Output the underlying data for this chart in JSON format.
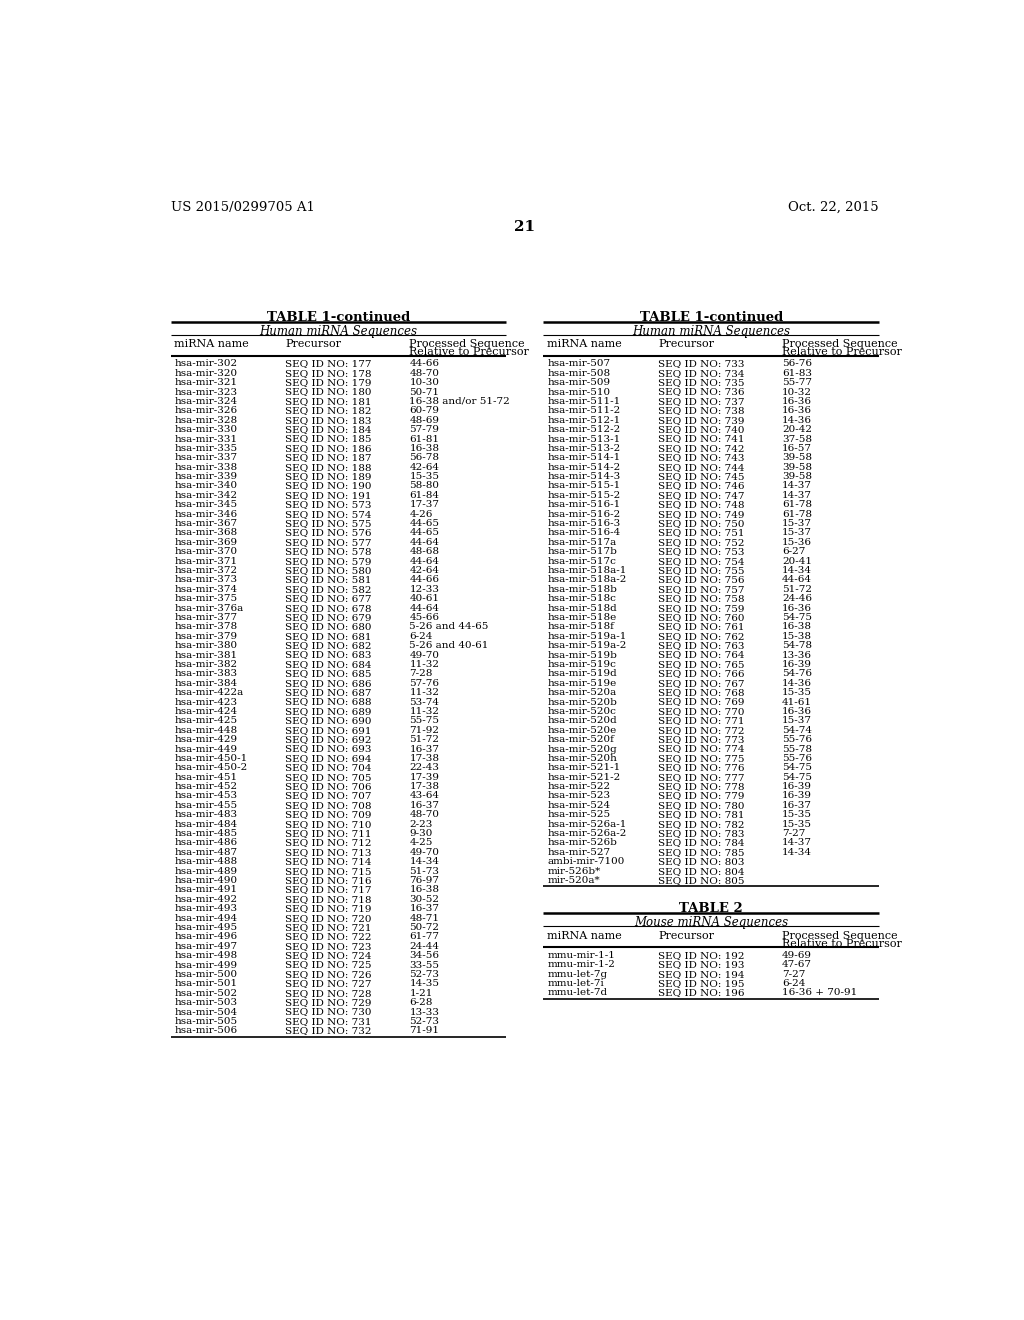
{
  "page_num": "21",
  "patent_left": "US 2015/0299705 A1",
  "patent_right": "Oct. 22, 2015",
  "table1_title": "TABLE 1-continued",
  "table1_subtitle": "Human miRNA Sequences",
  "table2_title": "TABLE 2",
  "table2_subtitle": "Mouse miRNA Sequences",
  "col_headers_line1": [
    "miRNA name",
    "Precursor",
    "Processed Sequence"
  ],
  "col_headers_line2": [
    "",
    "",
    "Relative to Precursor"
  ],
  "left_table_data": [
    [
      "hsa-mir-302",
      "SEQ ID NO: 177",
      "44-66"
    ],
    [
      "hsa-mir-320",
      "SEQ ID NO: 178",
      "48-70"
    ],
    [
      "hsa-mir-321",
      "SEQ ID NO: 179",
      "10-30"
    ],
    [
      "hsa-mir-323",
      "SEQ ID NO: 180",
      "50-71"
    ],
    [
      "hsa-mir-324",
      "SEQ ID NO: 181",
      "16-38 and/or 51-72"
    ],
    [
      "hsa-mir-326",
      "SEQ ID NO: 182",
      "60-79"
    ],
    [
      "hsa-mir-328",
      "SEQ ID NO: 183",
      "48-69"
    ],
    [
      "hsa-mir-330",
      "SEQ ID NO: 184",
      "57-79"
    ],
    [
      "hsa-mir-331",
      "SEQ ID NO: 185",
      "61-81"
    ],
    [
      "hsa-mir-335",
      "SEQ ID NO: 186",
      "16-38"
    ],
    [
      "hsa-mir-337",
      "SEQ ID NO: 187",
      "56-78"
    ],
    [
      "hsa-mir-338",
      "SEQ ID NO: 188",
      "42-64"
    ],
    [
      "hsa-mir-339",
      "SEQ ID NO: 189",
      "15-35"
    ],
    [
      "hsa-mir-340",
      "SEQ ID NO: 190",
      "58-80"
    ],
    [
      "hsa-mir-342",
      "SEQ ID NO: 191",
      "61-84"
    ],
    [
      "hsa-mir-345",
      "SEQ ID NO: 573",
      "17-37"
    ],
    [
      "hsa-mir-346",
      "SEQ ID NO: 574",
      "4-26"
    ],
    [
      "hsa-mir-367",
      "SEQ ID NO: 575",
      "44-65"
    ],
    [
      "hsa-mir-368",
      "SEQ ID NO: 576",
      "44-65"
    ],
    [
      "hsa-mir-369",
      "SEQ ID NO: 577",
      "44-64"
    ],
    [
      "hsa-mir-370",
      "SEQ ID NO: 578",
      "48-68"
    ],
    [
      "hsa-mir-371",
      "SEQ ID NO: 579",
      "44-64"
    ],
    [
      "hsa-mir-372",
      "SEQ ID NO: 580",
      "42-64"
    ],
    [
      "hsa-mir-373",
      "SEQ ID NO: 581",
      "44-66"
    ],
    [
      "hsa-mir-374",
      "SEQ ID NO: 582",
      "12-33"
    ],
    [
      "hsa-mir-375",
      "SEQ ID NO: 677",
      "40-61"
    ],
    [
      "hsa-mir-376a",
      "SEQ ID NO: 678",
      "44-64"
    ],
    [
      "hsa-mir-377",
      "SEQ ID NO: 679",
      "45-66"
    ],
    [
      "hsa-mir-378",
      "SEQ ID NO: 680",
      "5-26 and 44-65"
    ],
    [
      "hsa-mir-379",
      "SEQ ID NO: 681",
      "6-24"
    ],
    [
      "hsa-mir-380",
      "SEQ ID NO: 682",
      "5-26 and 40-61"
    ],
    [
      "hsa-mir-381",
      "SEQ ID NO: 683",
      "49-70"
    ],
    [
      "hsa-mir-382",
      "SEQ ID NO: 684",
      "11-32"
    ],
    [
      "hsa-mir-383",
      "SEQ ID NO: 685",
      "7-28"
    ],
    [
      "hsa-mir-384",
      "SEQ ID NO: 686",
      "57-76"
    ],
    [
      "hsa-mir-422a",
      "SEQ ID NO: 687",
      "11-32"
    ],
    [
      "hsa-mir-423",
      "SEQ ID NO: 688",
      "53-74"
    ],
    [
      "hsa-mir-424",
      "SEQ ID NO: 689",
      "11-32"
    ],
    [
      "hsa-mir-425",
      "SEQ ID NO: 690",
      "55-75"
    ],
    [
      "hsa-mir-448",
      "SEQ ID NO: 691",
      "71-92"
    ],
    [
      "hsa-mir-429",
      "SEQ ID NO: 692",
      "51-72"
    ],
    [
      "hsa-mir-449",
      "SEQ ID NO: 693",
      "16-37"
    ],
    [
      "hsa-mir-450-1",
      "SEQ ID NO: 694",
      "17-38"
    ],
    [
      "hsa-mir-450-2",
      "SEQ ID NO: 704",
      "22-43"
    ],
    [
      "hsa-mir-451",
      "SEQ ID NO: 705",
      "17-39"
    ],
    [
      "hsa-mir-452",
      "SEQ ID NO: 706",
      "17-38"
    ],
    [
      "hsa-mir-453",
      "SEQ ID NO: 707",
      "43-64"
    ],
    [
      "hsa-mir-455",
      "SEQ ID NO: 708",
      "16-37"
    ],
    [
      "hsa-mir-483",
      "SEQ ID NO: 709",
      "48-70"
    ],
    [
      "hsa-mir-484",
      "SEQ ID NO: 710",
      "2-23"
    ],
    [
      "hsa-mir-485",
      "SEQ ID NO: 711",
      "9-30"
    ],
    [
      "hsa-mir-486",
      "SEQ ID NO: 712",
      "4-25"
    ],
    [
      "hsa-mir-487",
      "SEQ ID NO: 713",
      "49-70"
    ],
    [
      "hsa-mir-488",
      "SEQ ID NO: 714",
      "14-34"
    ],
    [
      "hsa-mir-489",
      "SEQ ID NO: 715",
      "51-73"
    ],
    [
      "hsa-mir-490",
      "SEQ ID NO: 716",
      "76-97"
    ],
    [
      "hsa-mir-491",
      "SEQ ID NO: 717",
      "16-38"
    ],
    [
      "hsa-mir-492",
      "SEQ ID NO: 718",
      "30-52"
    ],
    [
      "hsa-mir-493",
      "SEQ ID NO: 719",
      "16-37"
    ],
    [
      "hsa-mir-494",
      "SEQ ID NO: 720",
      "48-71"
    ],
    [
      "hsa-mir-495",
      "SEQ ID NO: 721",
      "50-72"
    ],
    [
      "hsa-mir-496",
      "SEQ ID NO: 722",
      "61-77"
    ],
    [
      "hsa-mir-497",
      "SEQ ID NO: 723",
      "24-44"
    ],
    [
      "hsa-mir-498",
      "SEQ ID NO: 724",
      "34-56"
    ],
    [
      "hsa-mir-499",
      "SEQ ID NO: 725",
      "33-55"
    ],
    [
      "hsa-mir-500",
      "SEQ ID NO: 726",
      "52-73"
    ],
    [
      "hsa-mir-501",
      "SEQ ID NO: 727",
      "14-35"
    ],
    [
      "hsa-mir-502",
      "SEQ ID NO: 728",
      "1-21"
    ],
    [
      "hsa-mir-503",
      "SEQ ID NO: 729",
      "6-28"
    ],
    [
      "hsa-mir-504",
      "SEQ ID NO: 730",
      "13-33"
    ],
    [
      "hsa-mir-505",
      "SEQ ID NO: 731",
      "52-73"
    ],
    [
      "hsa-mir-506",
      "SEQ ID NO: 732",
      "71-91"
    ]
  ],
  "right_table_data": [
    [
      "hsa-mir-507",
      "SEQ ID NO: 733",
      "56-76"
    ],
    [
      "hsa-mir-508",
      "SEQ ID NO: 734",
      "61-83"
    ],
    [
      "hsa-mir-509",
      "SEQ ID NO: 735",
      "55-77"
    ],
    [
      "hsa-mir-510",
      "SEQ ID NO: 736",
      "10-32"
    ],
    [
      "hsa-mir-511-1",
      "SEQ ID NO: 737",
      "16-36"
    ],
    [
      "hsa-mir-511-2",
      "SEQ ID NO: 738",
      "16-36"
    ],
    [
      "hsa-mir-512-1",
      "SEQ ID NO: 739",
      "14-36"
    ],
    [
      "hsa-mir-512-2",
      "SEQ ID NO: 740",
      "20-42"
    ],
    [
      "hsa-mir-513-1",
      "SEQ ID NO: 741",
      "37-58"
    ],
    [
      "hsa-mir-513-2",
      "SEQ ID NO: 742",
      "16-57"
    ],
    [
      "hsa-mir-514-1",
      "SEQ ID NO: 743",
      "39-58"
    ],
    [
      "hsa-mir-514-2",
      "SEQ ID NO: 744",
      "39-58"
    ],
    [
      "hsa-mir-514-3",
      "SEQ ID NO: 745",
      "39-58"
    ],
    [
      "hsa-mir-515-1",
      "SEQ ID NO: 746",
      "14-37"
    ],
    [
      "hsa-mir-515-2",
      "SEQ ID NO: 747",
      "14-37"
    ],
    [
      "hsa-mir-516-1",
      "SEQ ID NO: 748",
      "61-78"
    ],
    [
      "hsa-mir-516-2",
      "SEQ ID NO: 749",
      "61-78"
    ],
    [
      "hsa-mir-516-3",
      "SEQ ID NO: 750",
      "15-37"
    ],
    [
      "hsa-mir-516-4",
      "SEQ ID NO: 751",
      "15-37"
    ],
    [
      "hsa-mir-517a",
      "SEQ ID NO: 752",
      "15-36"
    ],
    [
      "hsa-mir-517b",
      "SEQ ID NO: 753",
      "6-27"
    ],
    [
      "hsa-mir-517c",
      "SEQ ID NO: 754",
      "20-41"
    ],
    [
      "hsa-mir-518a-1",
      "SEQ ID NO: 755",
      "14-34"
    ],
    [
      "hsa-mir-518a-2",
      "SEQ ID NO: 756",
      "44-64"
    ],
    [
      "hsa-mir-518b",
      "SEQ ID NO: 757",
      "51-72"
    ],
    [
      "hsa-mir-518c",
      "SEQ ID NO: 758",
      "24-46"
    ],
    [
      "hsa-mir-518d",
      "SEQ ID NO: 759",
      "16-36"
    ],
    [
      "hsa-mir-518e",
      "SEQ ID NO: 760",
      "54-75"
    ],
    [
      "hsa-mir-518f",
      "SEQ ID NO: 761",
      "16-38"
    ],
    [
      "hsa-mir-519a-1",
      "SEQ ID NO: 762",
      "15-38"
    ],
    [
      "hsa-mir-519a-2",
      "SEQ ID NO: 763",
      "54-78"
    ],
    [
      "hsa-mir-519b",
      "SEQ ID NO: 764",
      "13-36"
    ],
    [
      "hsa-mir-519c",
      "SEQ ID NO: 765",
      "16-39"
    ],
    [
      "hsa-mir-519d",
      "SEQ ID NO: 766",
      "54-76"
    ],
    [
      "hsa-mir-519e",
      "SEQ ID NO: 767",
      "14-36"
    ],
    [
      "hsa-mir-520a",
      "SEQ ID NO: 768",
      "15-35"
    ],
    [
      "hsa-mir-520b",
      "SEQ ID NO: 769",
      "41-61"
    ],
    [
      "hsa-mir-520c",
      "SEQ ID NO: 770",
      "16-36"
    ],
    [
      "hsa-mir-520d",
      "SEQ ID NO: 771",
      "15-37"
    ],
    [
      "hsa-mir-520e",
      "SEQ ID NO: 772",
      "54-74"
    ],
    [
      "hsa-mir-520f",
      "SEQ ID NO: 773",
      "55-76"
    ],
    [
      "hsa-mir-520g",
      "SEQ ID NO: 774",
      "55-78"
    ],
    [
      "hsa-mir-520h",
      "SEQ ID NO: 775",
      "55-76"
    ],
    [
      "hsa-mir-521-1",
      "SEQ ID NO: 776",
      "54-75"
    ],
    [
      "hsa-mir-521-2",
      "SEQ ID NO: 777",
      "54-75"
    ],
    [
      "hsa-mir-522",
      "SEQ ID NO: 778",
      "16-39"
    ],
    [
      "hsa-mir-523",
      "SEQ ID NO: 779",
      "16-39"
    ],
    [
      "hsa-mir-524",
      "SEQ ID NO: 780",
      "16-37"
    ],
    [
      "hsa-mir-525",
      "SEQ ID NO: 781",
      "15-35"
    ],
    [
      "hsa-mir-526a-1",
      "SEQ ID NO: 782",
      "15-35"
    ],
    [
      "hsa-mir-526a-2",
      "SEQ ID NO: 783",
      "7-27"
    ],
    [
      "hsa-mir-526b",
      "SEQ ID NO: 784",
      "14-37"
    ],
    [
      "hsa-mir-527",
      "SEQ ID NO: 785",
      "14-34"
    ],
    [
      "ambi-mir-7100",
      "SEQ ID NO: 803",
      ""
    ],
    [
      "mir-526b*",
      "SEQ ID NO: 804",
      ""
    ],
    [
      "mir-520a*",
      "SEQ ID NO: 805",
      ""
    ]
  ],
  "table2_data": [
    [
      "mmu-mir-1-1",
      "SEQ ID NO: 192",
      "49-69"
    ],
    [
      "mmu-mir-1-2",
      "SEQ ID NO: 193",
      "47-67"
    ],
    [
      "mmu-let-7g",
      "SEQ ID NO: 194",
      "7-27"
    ],
    [
      "mmu-let-7i",
      "SEQ ID NO: 195",
      "6-24"
    ],
    [
      "mmu-let-7d",
      "SEQ ID NO: 196",
      "16-36 + 70-91"
    ]
  ],
  "bg_color": "#ffffff",
  "text_color": "#000000",
  "header_fontsize": 9.5,
  "subtitle_fontsize": 8.5,
  "col_header_fontsize": 8.0,
  "data_fontsize": 7.5,
  "patent_fontsize": 9.5,
  "pagenum_fontsize": 11
}
